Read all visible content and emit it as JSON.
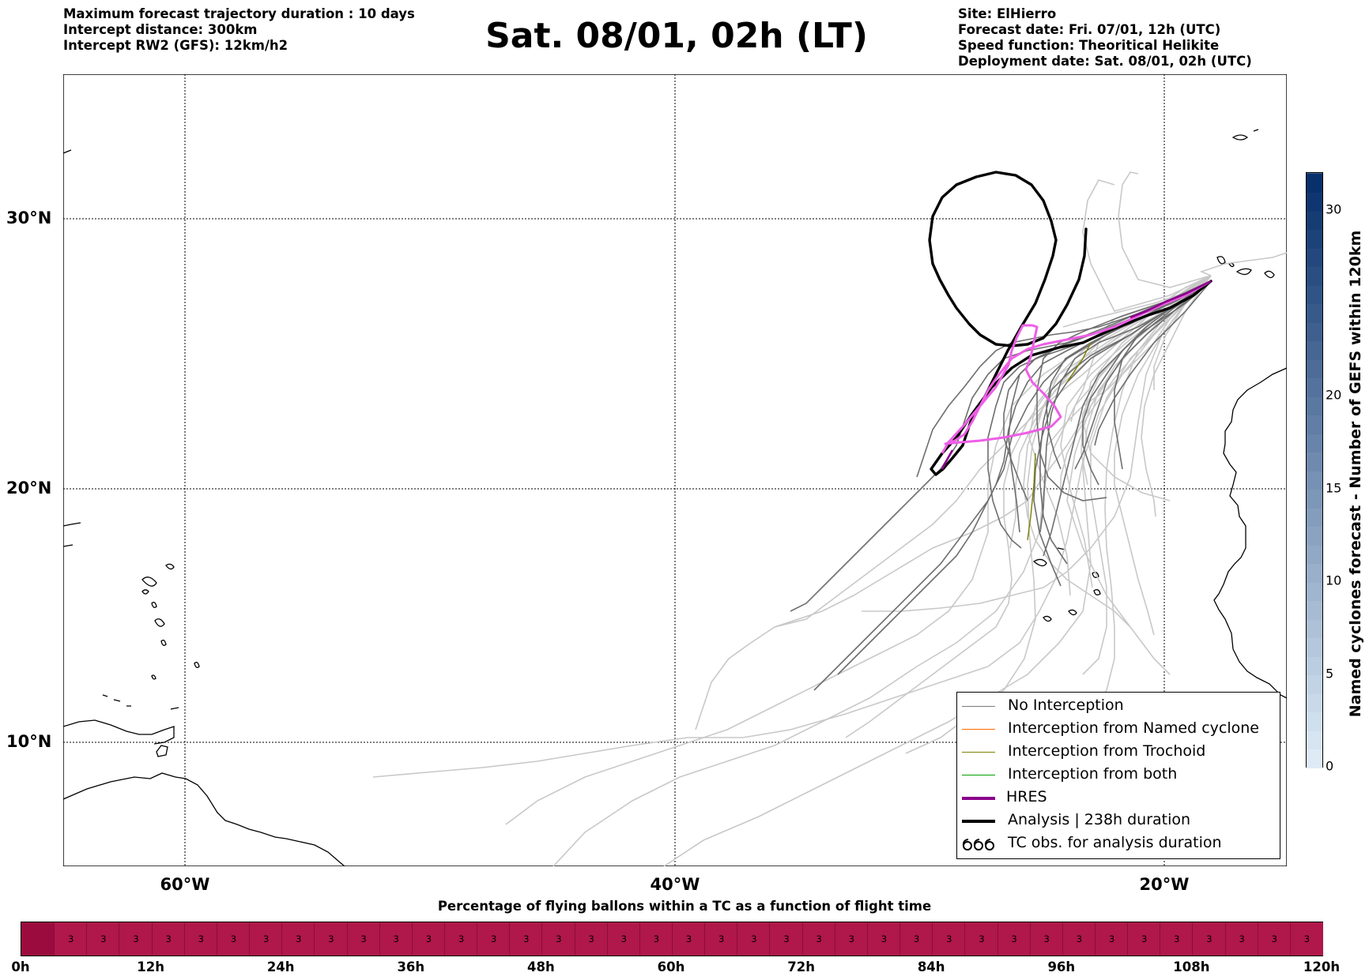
{
  "header_left": [
    "Maximum forecast trajectory duration : 10 days",
    "Intercept distance: 300km",
    "Intercept RW2 (GFS):  12km/h2"
  ],
  "title": "Sat. 08/01, 02h (LT)",
  "header_right": [
    "Site: ElHierro",
    "Forecast date: Fri. 07/01, 12h (UTC)",
    "Speed function: Theoritical Helikite",
    "Deployment date: Sat. 08/01, 02h (UTC)"
  ],
  "map": {
    "lat_labels": [
      "30°N",
      "20°N",
      "10°N"
    ],
    "lon_labels": [
      "60°W",
      "40°W",
      "20°W"
    ],
    "extent": {
      "lon_min": -65,
      "lon_max": -15,
      "lat_min": 5.4,
      "lat_max": 35.6
    },
    "colors": {
      "no_interception": "#7a7a7a",
      "no_interception_light": "#c8c8c8",
      "named_cyclone": "#ff6a00",
      "trochoid": "#7f7f00",
      "both": "#00a000",
      "hres_legend": "#8b008b",
      "hres_track": "#ee5ee6",
      "analysis": "#000000"
    }
  },
  "legend": [
    {
      "label": "No Interception",
      "icon": "gray-line-icon"
    },
    {
      "label": "Interception from Named cyclone",
      "icon": "orange-line-icon"
    },
    {
      "label": "Interception from Trochoid",
      "icon": "olive-line-icon"
    },
    {
      "label": "Interception from both",
      "icon": "green-line-icon"
    },
    {
      "label": "HRES",
      "icon": "purple-line-icon"
    },
    {
      "label": "Analysis | 238h duration",
      "icon": "black-line-icon"
    },
    {
      "label": "TC obs. for analysis duration",
      "icon": "cyclone-symbol-icon"
    }
  ],
  "colorbar": {
    "label": "Named cyclones forecast - Number of GEFS within 120km",
    "ticks": [
      "0",
      "5",
      "10",
      "15",
      "20",
      "30"
    ],
    "min": 0,
    "max": 32
  },
  "bottom_bar": {
    "title": "Percentage of flying ballons within a TC as a function of flight time",
    "color": "#b0174a",
    "first_cell_color": "#9b0b3e",
    "cell_values": [
      "3",
      "3",
      "3",
      "3",
      "3",
      "3",
      "3",
      "3",
      "3",
      "3",
      "3",
      "3",
      "3",
      "3",
      "3",
      "3",
      "3",
      "3",
      "3",
      "3",
      "3",
      "3",
      "3",
      "3",
      "3",
      "3",
      "3",
      "3",
      "3",
      "3",
      "3",
      "3",
      "3",
      "3",
      "3",
      "3",
      "3",
      "3",
      "3"
    ],
    "time_labels": [
      "0h",
      "12h",
      "24h",
      "36h",
      "48h",
      "60h",
      "72h",
      "84h",
      "96h",
      "108h",
      "120h"
    ]
  }
}
